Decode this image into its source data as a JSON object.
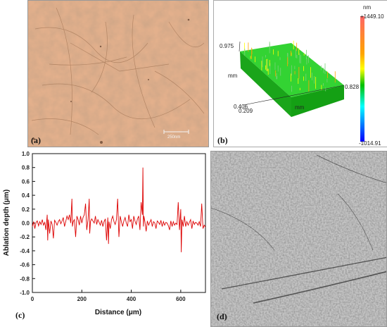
{
  "panels": {
    "a": {
      "label": "(a)",
      "scalebar": "250nm"
    },
    "b": {
      "label": "(b)",
      "unit": "nm",
      "scale_max": "+1449.10",
      "scale_min": "-1014.91",
      "axis_y_val": "0.975",
      "axis_y_unit": "mm",
      "axis_x_val": "0.828",
      "axis_x_unit": "mm",
      "axis_o1": "0.406",
      "axis_o2": "0.209",
      "colors": [
        "#ff6666",
        "#ffa500",
        "#ffff00",
        "#00c000",
        "#00ffff",
        "#0000ff"
      ]
    },
    "c": {
      "label": "(c)"
    },
    "d": {
      "label": "(d)"
    }
  },
  "chart_data": {
    "type": "line",
    "xlabel": "Distance (μm)",
    "ylabel": "Ablation depth (μm)",
    "xlim": [
      0,
      700
    ],
    "ylim": [
      -1.0,
      1.0
    ],
    "xticks": [
      "0",
      "200",
      "400",
      "600"
    ],
    "xtick_values": [
      0,
      200,
      400,
      600
    ],
    "yticks": [
      "1.0",
      "0.8",
      "0.6",
      "0.4",
      "0.2",
      "0.0",
      "-0.2",
      "-0.4",
      "-0.6",
      "-0.8",
      "-1.0"
    ],
    "ytick_values": [
      1.0,
      0.8,
      0.6,
      0.4,
      0.2,
      0.0,
      -0.2,
      -0.4,
      -0.6,
      -0.8,
      -1.0
    ],
    "line_color": "#dd0000",
    "series": [
      {
        "x": [
          0,
          5,
          10,
          15,
          20,
          25,
          30,
          35,
          40,
          45,
          50,
          55,
          60,
          62,
          65,
          70,
          75,
          80,
          85,
          90,
          95,
          100,
          105,
          110,
          115,
          120,
          125,
          130,
          135,
          140,
          145,
          150,
          155,
          160,
          162,
          165,
          170,
          175,
          180,
          185,
          190,
          195,
          200,
          205,
          210,
          215,
          220,
          225,
          230,
          232,
          235,
          240,
          245,
          250,
          255,
          260,
          265,
          270,
          275,
          280,
          285,
          290,
          295,
          300,
          305,
          308,
          310,
          315,
          320,
          325,
          330,
          335,
          340,
          345,
          350,
          355,
          360,
          365,
          370,
          375,
          380,
          385,
          390,
          395,
          400,
          405,
          410,
          415,
          420,
          425,
          430,
          435,
          440,
          445,
          447,
          449,
          451,
          455,
          460,
          465,
          470,
          475,
          480,
          485,
          490,
          495,
          500,
          505,
          510,
          515,
          520,
          525,
          530,
          535,
          540,
          545,
          550,
          555,
          560,
          565,
          570,
          575,
          580,
          585,
          590,
          595,
          600,
          602,
          605,
          610,
          615,
          620,
          625,
          630,
          635,
          640,
          645,
          650,
          655,
          660,
          665,
          670,
          675,
          680,
          685,
          690,
          695,
          700
        ],
        "y": [
          -0.05,
          0.02,
          -0.08,
          0.01,
          0.03,
          -0.04,
          0.02,
          -0.02,
          0.05,
          -0.03,
          0.01,
          -0.1,
          0.12,
          -0.25,
          0.05,
          -0.15,
          0.03,
          -0.02,
          -0.22,
          0.04,
          0.01,
          -0.03,
          0.02,
          0.05,
          -0.01,
          0.03,
          0.08,
          -0.05,
          0.02,
          0.1,
          0.05,
          0.12,
          0.0,
          0.35,
          -0.05,
          0.02,
          0.05,
          -0.2,
          0.1,
          0.05,
          -0.03,
          0.1,
          0.0,
          0.08,
          0.12,
          0.28,
          -0.1,
          0.05,
          0.35,
          -0.15,
          0.02,
          0.06,
          0.03,
          0.0,
          0.1,
          -0.02,
          0.05,
          0.01,
          -0.03,
          0.04,
          -0.05,
          0.02,
          0.06,
          -0.25,
          0.08,
          -0.3,
          0.02,
          -0.08,
          0.05,
          0.1,
          0.02,
          -0.02,
          0.05,
          0.35,
          -0.2,
          0.1,
          0.02,
          -0.05,
          0.03,
          0.08,
          0.0,
          -0.05,
          0.12,
          0.02,
          0.05,
          -0.08,
          0.1,
          0.03,
          -0.02,
          0.06,
          0.1,
          -0.1,
          0.3,
          0.12,
          0.8,
          -0.05,
          0.1,
          0.02,
          -0.12,
          0.03,
          -0.03,
          0.01,
          0.05,
          -0.05,
          0.02,
          0.0,
          -0.08,
          0.03,
          0.01,
          -0.02,
          0.04,
          -0.05,
          0.02,
          -0.03,
          0.01,
          0.0,
          -0.04,
          -0.1,
          0.03,
          -0.05,
          0.02,
          -0.03,
          0.0,
          -0.02,
          0.3,
          -0.1,
          0.2,
          -0.42,
          0.05,
          -0.05,
          0.1,
          -0.05,
          0.02,
          -0.03,
          0.01,
          0.05,
          -0.08,
          0.03,
          -0.02,
          0.01,
          0.0,
          -0.03,
          0.02,
          -0.05,
          0.28,
          -0.08,
          -0.03,
          -0.06
        ]
      }
    ]
  }
}
